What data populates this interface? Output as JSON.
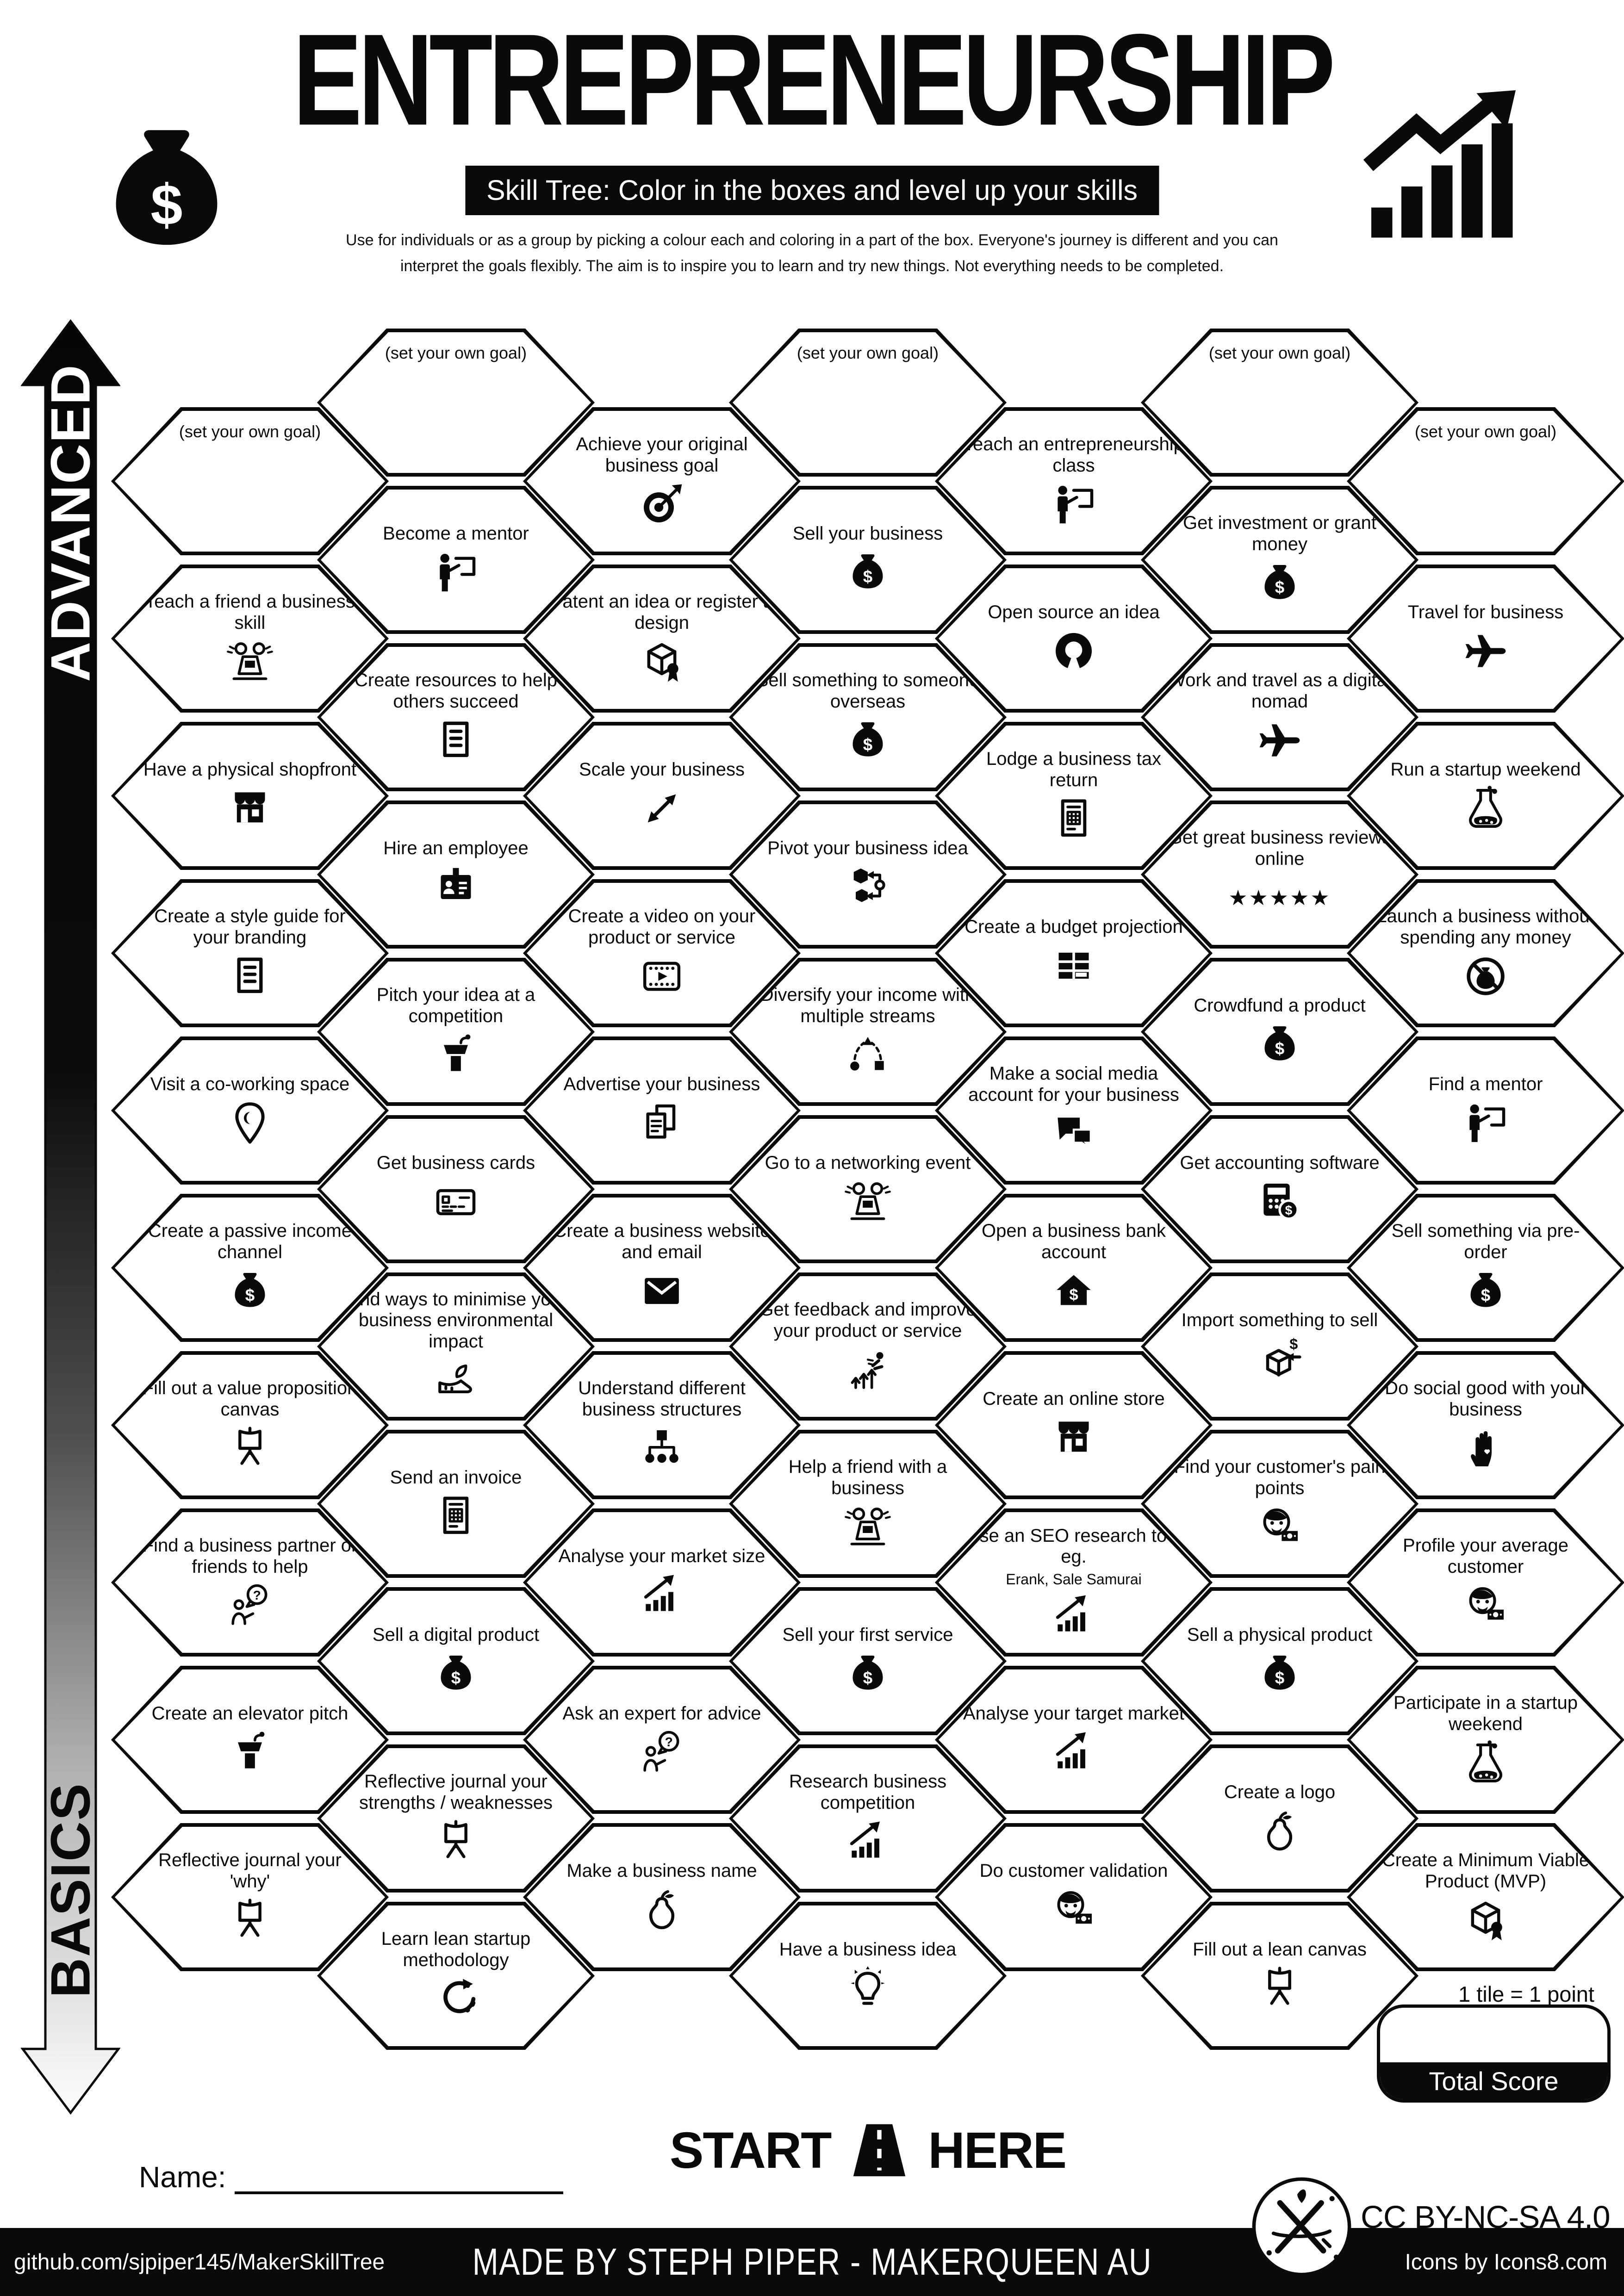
{
  "header": {
    "title": "ENTREPRENEURSHIP",
    "banner": "Skill Tree:  Color in the boxes and level up your skills",
    "description_line1": "Use for individuals or as a group by picking a colour each and coloring in a part of the box.  Everyone's journey is different and you can",
    "description_line2": "interpret the goals flexibly.  The aim is to inspire you to learn and try new things. Not everything needs to be completed.",
    "left_icon": "money-bag",
    "right_icon": "growth-chart"
  },
  "axis": {
    "top_label": "ADVANCED",
    "bottom_label": "BASICS"
  },
  "grid": {
    "columns": [
      {
        "hexes": [
          {
            "label": "(set your own goal)",
            "icon": null
          },
          {
            "label": "Teach a friend a business skill",
            "icon": "people-laptop"
          },
          {
            "label": "Have a physical shopfront",
            "icon": "shopfront"
          },
          {
            "label": "Create a style guide for your branding",
            "icon": "document"
          },
          {
            "label": "Visit a co-working space",
            "icon": "map-pin"
          },
          {
            "label": "Create a passive income channel",
            "icon": "money-bag"
          },
          {
            "label": "Fill out a value proposition canvas",
            "icon": "easel"
          },
          {
            "label": "Find a business partner or friends to help",
            "icon": "person-question"
          },
          {
            "label": "Create an elevator pitch",
            "icon": "podium"
          },
          {
            "label": "Reflective journal your 'why'",
            "icon": "easel"
          }
        ]
      },
      {
        "hexes": [
          {
            "label": "(set your own goal)",
            "icon": null
          },
          {
            "label": "Become a mentor",
            "icon": "person-board"
          },
          {
            "label": "Create resources to help others succeed",
            "icon": "document"
          },
          {
            "label": "Hire an employee",
            "icon": "id-card"
          },
          {
            "label": "Pitch your idea at a competition",
            "icon": "podium"
          },
          {
            "label": "Get business cards",
            "icon": "business-card"
          },
          {
            "label": "Find ways to minimise your business environmental impact",
            "icon": "shoe-leaf"
          },
          {
            "label": "Send an invoice",
            "icon": "invoice"
          },
          {
            "label": "Sell a digital product",
            "icon": "money-bag"
          },
          {
            "label": "Reflective journal your strengths / weaknesses",
            "icon": "easel"
          },
          {
            "label": "Learn lean startup methodology",
            "icon": "loop-arrow"
          }
        ]
      },
      {
        "hexes": [
          {
            "label": "Achieve your original business goal",
            "icon": "target"
          },
          {
            "label": "Patent an idea or register a design",
            "icon": "box-ribbon"
          },
          {
            "label": "Scale your business",
            "icon": "scale-arrows"
          },
          {
            "label": "Create a video on your product or service",
            "icon": "video"
          },
          {
            "label": "Advertise your business",
            "icon": "docs-copy"
          },
          {
            "label": "Create a business website and email",
            "icon": "envelope"
          },
          {
            "label": "Understand different business structures",
            "icon": "org-chart"
          },
          {
            "label": "Analyse your market size",
            "icon": "chart-up"
          },
          {
            "label": "Ask an expert for advice",
            "icon": "person-question"
          },
          {
            "label": "Make a business name",
            "icon": "pear"
          }
        ]
      },
      {
        "hexes": [
          {
            "label": "(set your own goal)",
            "icon": null
          },
          {
            "label": "Sell your business",
            "icon": "money-bag"
          },
          {
            "label": "Sell something to someone overseas",
            "icon": "money-bag"
          },
          {
            "label": "Pivot your business idea",
            "icon": "pivot"
          },
          {
            "label": "Diversify your income with multiple streams",
            "icon": "diversify"
          },
          {
            "label": "Go to a networking event",
            "icon": "people-laptop"
          },
          {
            "label": "Get feedback and improve your product or service",
            "icon": "improve-arrows"
          },
          {
            "label": "Help a friend with a business",
            "icon": "people-laptop"
          },
          {
            "label": "Sell your first service",
            "icon": "money-bag"
          },
          {
            "label": "Research business competition",
            "icon": "chart-up"
          },
          {
            "label": "Have a business idea",
            "icon": "lightbulb"
          }
        ]
      },
      {
        "hexes": [
          {
            "label": "Teach an entrepreneurship class",
            "icon": "person-board"
          },
          {
            "label": "Open source an idea",
            "icon": "open-source"
          },
          {
            "label": "Lodge a business tax return",
            "icon": "invoice"
          },
          {
            "label": "Create a budget projection",
            "icon": "budget-table"
          },
          {
            "label": "Make a social media account for your business",
            "icon": "chat-bubbles"
          },
          {
            "label": "Open a business bank account",
            "icon": "house-dollar"
          },
          {
            "label": "Create an online store",
            "icon": "shopfront"
          },
          {
            "label": "Use an SEO research tool eg.",
            "sublabel": "Erank, Sale Samurai",
            "icon": "chart-up"
          },
          {
            "label": "Analyse your target market",
            "icon": "chart-up"
          },
          {
            "label": "Do customer validation",
            "icon": "face-money"
          }
        ]
      },
      {
        "hexes": [
          {
            "label": "(set your own goal)",
            "icon": null
          },
          {
            "label": "Get investment or grant money",
            "icon": "money-bag"
          },
          {
            "label": "Work and travel as a digital nomad",
            "icon": "plane"
          },
          {
            "label": "Get great business reviews online",
            "icon": "five-stars"
          },
          {
            "label": "Crowdfund a product",
            "icon": "money-bag"
          },
          {
            "label": "Get accounting software",
            "icon": "calculator-dollar"
          },
          {
            "label": "Import something to sell",
            "icon": "import-box"
          },
          {
            "label": "Find your customer's pain points",
            "icon": "face-money"
          },
          {
            "label": "Sell a physical product",
            "icon": "money-bag"
          },
          {
            "label": "Create a logo",
            "icon": "pear"
          },
          {
            "label": "Fill out a lean canvas",
            "icon": "easel"
          }
        ]
      },
      {
        "hexes": [
          {
            "label": "(set your own goal)",
            "icon": null
          },
          {
            "label": "Travel for business",
            "icon": "plane"
          },
          {
            "label": "Run a startup weekend",
            "icon": "flask-people"
          },
          {
            "label": "Launch a business without spending any money",
            "icon": "no-money"
          },
          {
            "label": "Find a mentor",
            "icon": "person-board"
          },
          {
            "label": "Sell something via pre-order",
            "icon": "money-bag"
          },
          {
            "label": "Do social good with your business",
            "icon": "hand-heart"
          },
          {
            "label": "Profile your average customer",
            "icon": "face-money"
          },
          {
            "label": "Participate in a startup weekend",
            "icon": "flask-people"
          },
          {
            "label": "Create a Minimum Viable Product (MVP)",
            "icon": "box-ribbon"
          }
        ]
      }
    ]
  },
  "footer": {
    "start_label": "START",
    "here_label": "HERE",
    "start_icon": "road",
    "name_label": "Name:",
    "tile_note": "1 tile = 1 point",
    "total_score_label": "Total Score",
    "license": "CC BY-NC-SA 4.0",
    "license_icon": "maker-logo",
    "bar_left": "github.com/sjpiper145/MakerSkillTree",
    "bar_center": "MADE BY STEPH PIPER  -  MAKERQUEEN AU",
    "bar_right": "Icons by Icons8.com"
  }
}
